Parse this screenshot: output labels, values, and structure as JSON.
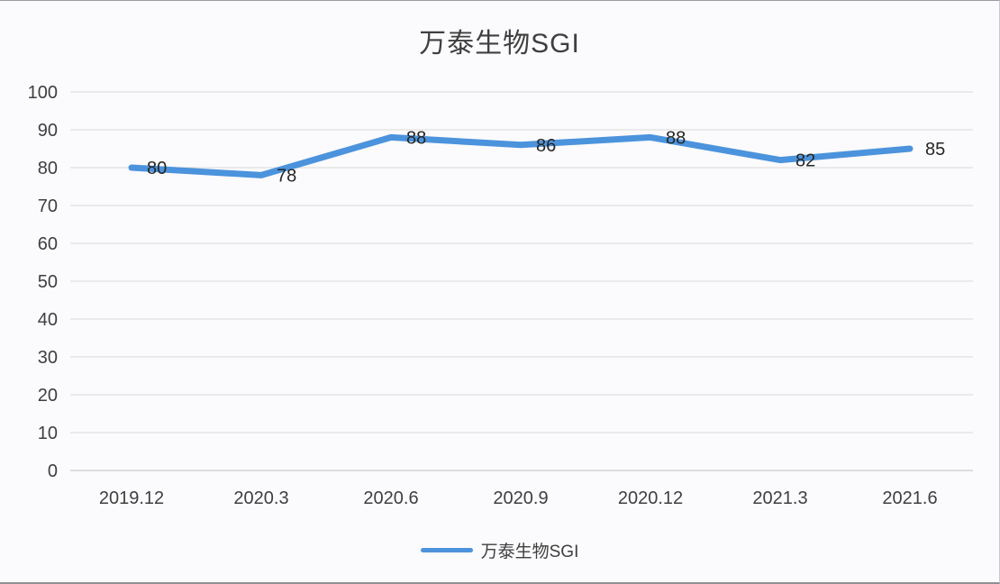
{
  "chart_data": {
    "type": "line",
    "title": "万泰生物SGI",
    "categories": [
      "2019.12",
      "2020.3",
      "2020.6",
      "2020.9",
      "2020.12",
      "2021.3",
      "2021.6"
    ],
    "series": [
      {
        "name": "万泰生物SGI",
        "values": [
          80,
          78,
          88,
          86,
          88,
          82,
          85
        ]
      }
    ],
    "data_labels": [
      "80",
      "78",
      "88",
      "86",
      "88",
      "82",
      "85"
    ],
    "ylim": [
      0,
      100
    ],
    "ytick_step": 10,
    "ytick_labels": [
      "0",
      "10",
      "20",
      "30",
      "40",
      "50",
      "60",
      "70",
      "80",
      "90",
      "100"
    ],
    "grid": true,
    "legend_position": "bottom"
  },
  "colors": {
    "line": "#4b93dc",
    "grid": "#d9d9d9",
    "axis_line": "#bfbfbf",
    "title_text": "#3f3f3f",
    "tick_text": "#3f3f3f",
    "data_label_text": "#262626",
    "background": "#fbfafc"
  }
}
